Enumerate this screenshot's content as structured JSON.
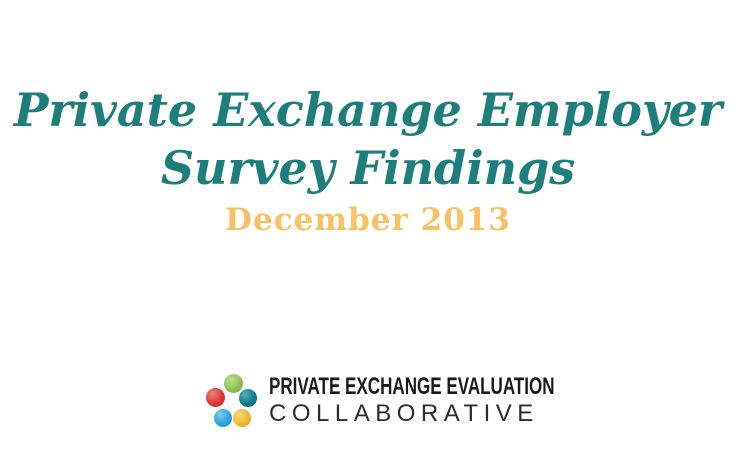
{
  "slide": {
    "background": "#ffffff",
    "title": {
      "line1": "Private Exchange Employer",
      "line2": "Survey Findings",
      "color": "#1D7E7B"
    },
    "date": {
      "text": "December 2013",
      "color": "#F9C163"
    },
    "logo": {
      "line1": "PRIVATE EXCHANGE EVALUATION",
      "line2": "COLLABORATIVE",
      "line1_color": "#1A1A1A",
      "line2_color": "#2D2D2D",
      "dots": [
        {
          "name": "green",
          "highlight": "#C0DE96",
          "color": "#8CC152",
          "edge": "#76AC40"
        },
        {
          "name": "red",
          "highlight": "#EE8276",
          "color": "#DC382E",
          "edge": "#C52A20"
        },
        {
          "name": "teal",
          "highlight": "#57ABB4",
          "color": "#0F7E8A",
          "edge": "#0A6874"
        },
        {
          "name": "blue",
          "highlight": "#84CCEF",
          "color": "#2AA4DE",
          "edge": "#1E87BF"
        },
        {
          "name": "yellow",
          "highlight": "#FAD67D",
          "color": "#F4B82C",
          "edge": "#DFA014"
        }
      ]
    }
  }
}
